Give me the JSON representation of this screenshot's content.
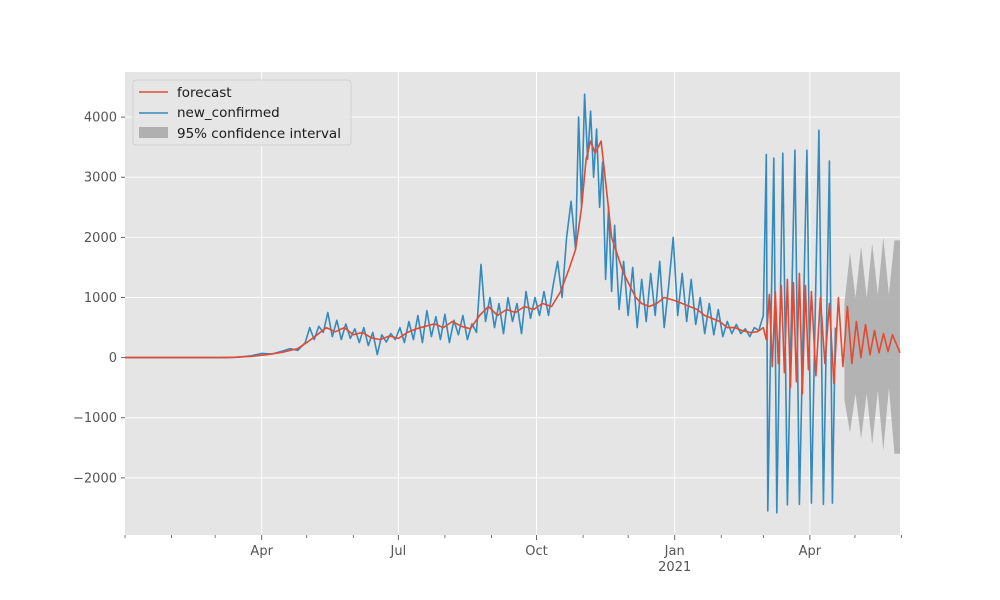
{
  "chart_data": {
    "type": "line",
    "title": "",
    "xlabel": "",
    "ylabel": "",
    "grid": true,
    "legend_placement": "top-left",
    "x_range": [
      "2020-01-01",
      "2021-05-31"
    ],
    "ylim": [
      -2950,
      4750
    ],
    "y_ticks": [
      {
        "value": 4000,
        "label": "4000"
      },
      {
        "value": 3000,
        "label": "3000"
      },
      {
        "value": 2000,
        "label": "2000"
      },
      {
        "value": 1000,
        "label": "1000"
      },
      {
        "value": 0,
        "label": "0"
      },
      {
        "value": -1000,
        "label": "−1000"
      },
      {
        "value": -2000,
        "label": "−2000"
      }
    ],
    "x_ticks": [
      {
        "date": "2020-04-01",
        "label": "Apr",
        "sublabel": ""
      },
      {
        "date": "2020-07-01",
        "label": "Jul",
        "sublabel": ""
      },
      {
        "date": "2020-10-01",
        "label": "Oct",
        "sublabel": ""
      },
      {
        "date": "2021-01-01",
        "label": "Jan",
        "sublabel": "2021"
      },
      {
        "date": "2021-04-01",
        "label": "Apr",
        "sublabel": ""
      }
    ],
    "x_minor_ticks": [
      "2020-01-01",
      "2020-02-01",
      "2020-03-01",
      "2020-05-01",
      "2020-06-01",
      "2020-08-01",
      "2020-09-01",
      "2020-11-01",
      "2020-12-01",
      "2021-02-01",
      "2021-03-01",
      "2021-05-01",
      "2021-06-01"
    ],
    "colors": {
      "forecast": "#E24A33",
      "new_confirmed": "#348ABD",
      "confidence_interval": "#aaaaaa",
      "plot_background": "#E5E5E5",
      "grid": "#ffffff"
    },
    "legend": [
      {
        "key": "forecast",
        "label": "forecast"
      },
      {
        "key": "new_confirmed",
        "label": "new_confirmed"
      },
      {
        "key": "confidence_interval",
        "label": "95% confidence interval"
      }
    ],
    "series": [
      {
        "name": "new_confirmed",
        "points": [
          [
            "2020-01-01",
            0
          ],
          [
            "2020-03-01",
            0
          ],
          [
            "2020-03-15",
            5
          ],
          [
            "2020-03-25",
            30
          ],
          [
            "2020-04-01",
            70
          ],
          [
            "2020-04-08",
            60
          ],
          [
            "2020-04-15",
            110
          ],
          [
            "2020-04-20",
            150
          ],
          [
            "2020-04-25",
            120
          ],
          [
            "2020-04-30",
            250
          ],
          [
            "2020-05-03",
            500
          ],
          [
            "2020-05-06",
            300
          ],
          [
            "2020-05-09",
            520
          ],
          [
            "2020-05-12",
            420
          ],
          [
            "2020-05-15",
            750
          ],
          [
            "2020-05-18",
            350
          ],
          [
            "2020-05-21",
            620
          ],
          [
            "2020-05-24",
            300
          ],
          [
            "2020-05-27",
            560
          ],
          [
            "2020-05-30",
            320
          ],
          [
            "2020-06-02",
            480
          ],
          [
            "2020-06-05",
            250
          ],
          [
            "2020-06-08",
            500
          ],
          [
            "2020-06-11",
            200
          ],
          [
            "2020-06-14",
            420
          ],
          [
            "2020-06-17",
            50
          ],
          [
            "2020-06-20",
            380
          ],
          [
            "2020-06-23",
            260
          ],
          [
            "2020-06-26",
            400
          ],
          [
            "2020-06-29",
            300
          ],
          [
            "2020-07-02",
            500
          ],
          [
            "2020-07-05",
            250
          ],
          [
            "2020-07-08",
            600
          ],
          [
            "2020-07-11",
            300
          ],
          [
            "2020-07-14",
            700
          ],
          [
            "2020-07-17",
            250
          ],
          [
            "2020-07-20",
            780
          ],
          [
            "2020-07-23",
            350
          ],
          [
            "2020-07-26",
            680
          ],
          [
            "2020-07-29",
            300
          ],
          [
            "2020-08-01",
            720
          ],
          [
            "2020-08-04",
            250
          ],
          [
            "2020-08-07",
            620
          ],
          [
            "2020-08-10",
            380
          ],
          [
            "2020-08-13",
            700
          ],
          [
            "2020-08-16",
            300
          ],
          [
            "2020-08-19",
            560
          ],
          [
            "2020-08-22",
            420
          ],
          [
            "2020-08-25",
            1550
          ],
          [
            "2020-08-28",
            600
          ],
          [
            "2020-08-31",
            1000
          ],
          [
            "2020-09-03",
            500
          ],
          [
            "2020-09-06",
            900
          ],
          [
            "2020-09-09",
            400
          ],
          [
            "2020-09-12",
            1000
          ],
          [
            "2020-09-15",
            600
          ],
          [
            "2020-09-18",
            900
          ],
          [
            "2020-09-21",
            400
          ],
          [
            "2020-09-24",
            1100
          ],
          [
            "2020-09-27",
            650
          ],
          [
            "2020-09-30",
            1000
          ],
          [
            "2020-10-03",
            700
          ],
          [
            "2020-10-06",
            1100
          ],
          [
            "2020-10-09",
            700
          ],
          [
            "2020-10-12",
            1200
          ],
          [
            "2020-10-15",
            1600
          ],
          [
            "2020-10-18",
            1000
          ],
          [
            "2020-10-21",
            2000
          ],
          [
            "2020-10-24",
            2600
          ],
          [
            "2020-10-27",
            1800
          ],
          [
            "2020-10-29",
            4000
          ],
          [
            "2020-10-31",
            2500
          ],
          [
            "2020-11-02",
            4380
          ],
          [
            "2020-11-04",
            3300
          ],
          [
            "2020-11-06",
            4100
          ],
          [
            "2020-11-08",
            3000
          ],
          [
            "2020-11-10",
            3800
          ],
          [
            "2020-11-12",
            2500
          ],
          [
            "2020-11-14",
            3250
          ],
          [
            "2020-11-16",
            1300
          ],
          [
            "2020-11-18",
            2500
          ],
          [
            "2020-11-20",
            1100
          ],
          [
            "2020-11-22",
            2200
          ],
          [
            "2020-11-25",
            800
          ],
          [
            "2020-11-28",
            1600
          ],
          [
            "2020-12-01",
            700
          ],
          [
            "2020-12-04",
            1500
          ],
          [
            "2020-12-07",
            500
          ],
          [
            "2020-12-10",
            1300
          ],
          [
            "2020-12-13",
            600
          ],
          [
            "2020-12-16",
            1400
          ],
          [
            "2020-12-19",
            700
          ],
          [
            "2020-12-22",
            1600
          ],
          [
            "2020-12-25",
            500
          ],
          [
            "2020-12-28",
            1200
          ],
          [
            "2020-12-31",
            2000
          ],
          [
            "2021-01-03",
            700
          ],
          [
            "2021-01-06",
            1400
          ],
          [
            "2021-01-09",
            600
          ],
          [
            "2021-01-12",
            1300
          ],
          [
            "2021-01-15",
            550
          ],
          [
            "2021-01-18",
            1000
          ],
          [
            "2021-01-21",
            400
          ],
          [
            "2021-01-24",
            900
          ],
          [
            "2021-01-27",
            380
          ],
          [
            "2021-01-30",
            800
          ],
          [
            "2021-02-02",
            350
          ],
          [
            "2021-02-05",
            600
          ],
          [
            "2021-02-08",
            400
          ],
          [
            "2021-02-11",
            550
          ],
          [
            "2021-02-14",
            400
          ],
          [
            "2021-02-17",
            480
          ],
          [
            "2021-02-20",
            350
          ],
          [
            "2021-02-23",
            500
          ],
          [
            "2021-02-26",
            450
          ],
          [
            "2021-03-01",
            700
          ],
          [
            "2021-03-03",
            3380
          ],
          [
            "2021-03-04",
            -2550
          ],
          [
            "2021-03-08",
            3320
          ],
          [
            "2021-03-10",
            -2580
          ],
          [
            "2021-03-14",
            3400
          ],
          [
            "2021-03-17",
            -2450
          ],
          [
            "2021-03-22",
            3450
          ],
          [
            "2021-03-25",
            -2440
          ],
          [
            "2021-03-30",
            3450
          ],
          [
            "2021-04-02",
            -2420
          ],
          [
            "2021-04-07",
            3780
          ],
          [
            "2021-04-10",
            -2440
          ],
          [
            "2021-04-14",
            3270
          ],
          [
            "2021-04-16",
            -2420
          ],
          [
            "2021-04-18",
            500
          ]
        ]
      },
      {
        "name": "forecast",
        "points": [
          [
            "2020-01-01",
            0
          ],
          [
            "2020-03-10",
            0
          ],
          [
            "2020-03-25",
            20
          ],
          [
            "2020-04-05",
            50
          ],
          [
            "2020-04-15",
            90
          ],
          [
            "2020-04-25",
            150
          ],
          [
            "2020-05-01",
            250
          ],
          [
            "2020-05-08",
            380
          ],
          [
            "2020-05-14",
            500
          ],
          [
            "2020-05-20",
            430
          ],
          [
            "2020-05-26",
            500
          ],
          [
            "2020-06-01",
            380
          ],
          [
            "2020-06-07",
            420
          ],
          [
            "2020-06-13",
            330
          ],
          [
            "2020-06-19",
            300
          ],
          [
            "2020-06-25",
            360
          ],
          [
            "2020-07-01",
            320
          ],
          [
            "2020-07-07",
            420
          ],
          [
            "2020-07-13",
            480
          ],
          [
            "2020-07-19",
            520
          ],
          [
            "2020-07-25",
            560
          ],
          [
            "2020-07-31",
            500
          ],
          [
            "2020-08-06",
            600
          ],
          [
            "2020-08-12",
            520
          ],
          [
            "2020-08-18",
            480
          ],
          [
            "2020-08-24",
            700
          ],
          [
            "2020-08-30",
            850
          ],
          [
            "2020-09-05",
            700
          ],
          [
            "2020-09-11",
            800
          ],
          [
            "2020-09-17",
            750
          ],
          [
            "2020-09-23",
            850
          ],
          [
            "2020-09-29",
            800
          ],
          [
            "2020-10-05",
            900
          ],
          [
            "2020-10-11",
            850
          ],
          [
            "2020-10-17",
            1100
          ],
          [
            "2020-10-23",
            1500
          ],
          [
            "2020-10-27",
            1800
          ],
          [
            "2020-10-31",
            2500
          ],
          [
            "2020-11-03",
            3300
          ],
          [
            "2020-11-06",
            3600
          ],
          [
            "2020-11-09",
            3400
          ],
          [
            "2020-11-13",
            3600
          ],
          [
            "2020-11-17",
            2700
          ],
          [
            "2020-11-20",
            2000
          ],
          [
            "2020-11-24",
            1700
          ],
          [
            "2020-11-28",
            1400
          ],
          [
            "2020-12-02",
            1200
          ],
          [
            "2020-12-06",
            1000
          ],
          [
            "2020-12-10",
            900
          ],
          [
            "2020-12-15",
            850
          ],
          [
            "2020-12-20",
            900
          ],
          [
            "2020-12-25",
            1000
          ],
          [
            "2021-01-01",
            950
          ],
          [
            "2021-01-06",
            900
          ],
          [
            "2021-01-11",
            850
          ],
          [
            "2021-01-16",
            800
          ],
          [
            "2021-01-21",
            700
          ],
          [
            "2021-01-26",
            650
          ],
          [
            "2021-01-31",
            600
          ],
          [
            "2021-02-05",
            500
          ],
          [
            "2021-02-10",
            500
          ],
          [
            "2021-02-15",
            450
          ],
          [
            "2021-02-20",
            420
          ],
          [
            "2021-02-25",
            430
          ],
          [
            "2021-03-01",
            500
          ],
          [
            "2021-03-03",
            300
          ],
          [
            "2021-03-05",
            1050
          ],
          [
            "2021-03-07",
            -150
          ],
          [
            "2021-03-09",
            1100
          ],
          [
            "2021-03-11",
            -100
          ],
          [
            "2021-03-13",
            1200
          ],
          [
            "2021-03-15",
            -250
          ],
          [
            "2021-03-17",
            1300
          ],
          [
            "2021-03-19",
            -500
          ],
          [
            "2021-03-21",
            1250
          ],
          [
            "2021-03-23",
            -400
          ],
          [
            "2021-03-25",
            1400
          ],
          [
            "2021-03-27",
            -600
          ],
          [
            "2021-03-29",
            1200
          ],
          [
            "2021-03-31",
            -200
          ],
          [
            "2021-04-02",
            1100
          ],
          [
            "2021-04-05",
            -300
          ],
          [
            "2021-04-08",
            1000
          ],
          [
            "2021-04-11",
            -100
          ],
          [
            "2021-04-14",
            900
          ],
          [
            "2021-04-17",
            -430
          ],
          [
            "2021-04-20",
            1000
          ],
          [
            "2021-04-23",
            -150
          ],
          [
            "2021-04-26",
            850
          ],
          [
            "2021-04-29",
            -100
          ],
          [
            "2021-05-02",
            600
          ],
          [
            "2021-05-05",
            0
          ],
          [
            "2021-05-08",
            550
          ],
          [
            "2021-05-11",
            50
          ],
          [
            "2021-05-14",
            450
          ],
          [
            "2021-05-17",
            80
          ],
          [
            "2021-05-20",
            400
          ],
          [
            "2021-05-23",
            100
          ],
          [
            "2021-05-26",
            380
          ],
          [
            "2021-05-31",
            80
          ]
        ]
      }
    ],
    "confidence_interval": {
      "name": "95% confidence interval",
      "x_start": "2021-04-24",
      "x_end": "2021-05-31",
      "upper_peaks": [
        1750,
        1850,
        1900,
        2000,
        1950
      ],
      "upper_troughs": [
        900,
        1000,
        1000,
        1050,
        1050
      ],
      "lower_peaks": [
        -700,
        -600,
        -600,
        -550,
        -500
      ],
      "lower_troughs": [
        -1250,
        -1350,
        -1450,
        -1550,
        -1600
      ]
    }
  }
}
